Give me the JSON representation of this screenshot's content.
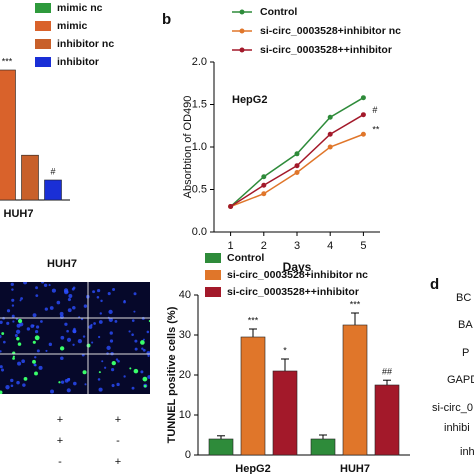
{
  "chart_data": [
    {
      "type": "bar",
      "categories": [
        "HUH7"
      ],
      "series": [
        {
          "name": "mimic nc",
          "color": "#2e9a3c",
          "values": [
            null
          ]
        },
        {
          "name": "mimic",
          "color": "#d9622b",
          "values": [
            3.25
          ],
          "labels": [
            "***"
          ]
        },
        {
          "name": "inhibitor nc",
          "color": "#c8602a",
          "values": [
            1.12
          ]
        },
        {
          "name": "inhibitor",
          "color": "#1a2fd6",
          "values": [
            0.5
          ],
          "labels": [
            "#"
          ]
        }
      ],
      "ylim": [
        0,
        4
      ]
    },
    {
      "type": "line",
      "panel_label": "b",
      "title": "HepG2",
      "x_label": "Days",
      "y_label": "Absorbtion of OD490",
      "x": [
        1,
        2,
        3,
        4,
        5
      ],
      "series": [
        {
          "name": "Control",
          "color": "#2e8b3a",
          "values": [
            0.3,
            0.65,
            0.92,
            1.35,
            1.58
          ]
        },
        {
          "name": "si-circ_0003528+inhibitor nc",
          "color": "#e0762a",
          "values": [
            0.3,
            0.45,
            0.7,
            1.0,
            1.15
          ],
          "end_label": "**"
        },
        {
          "name": "si-circ_0003528++inhibitor",
          "color": "#a3192a",
          "values": [
            0.3,
            0.55,
            0.78,
            1.15,
            1.38
          ],
          "end_label": "#"
        }
      ],
      "xlim": [
        0.5,
        5.5
      ],
      "xticks": [
        1,
        2,
        3,
        4,
        5
      ],
      "ylim": [
        0,
        2
      ],
      "yticks": [
        {
          "value": 0,
          "label": "0.0"
        },
        {
          "value": 0.5,
          "label": "0.5"
        },
        {
          "value": 1,
          "label": "1.0"
        },
        {
          "value": 1.5,
          "label": "1.5"
        },
        {
          "value": 2,
          "label": "2.0"
        }
      ]
    },
    {
      "type": "bar",
      "y_label": "TUNNEL positive cells (%)",
      "categories": [
        "HepG2",
        "HUH7"
      ],
      "series": [
        {
          "name": "Control",
          "color": "#2e8b3a",
          "values": [
            4,
            4
          ],
          "errors": [
            0.8,
            1
          ]
        },
        {
          "name": "si-circ_0003528+inhibitor nc",
          "color": "#e0762a",
          "values": [
            29.5,
            32.5
          ],
          "errors": [
            2,
            3
          ],
          "labels": [
            "***",
            "***"
          ]
        },
        {
          "name": "si-circ_0003528++inhibitor",
          "color": "#a3192a",
          "values": [
            21,
            17.5
          ],
          "errors": [
            3,
            1.2
          ],
          "labels": [
            "*",
            "##"
          ]
        }
      ],
      "ylim": [
        0,
        40
      ],
      "yticks": [
        0,
        10,
        20,
        30,
        40
      ]
    }
  ],
  "figure": {
    "image_title": "HUH7",
    "signs": [
      [
        "+",
        "+"
      ],
      [
        "+",
        "-"
      ],
      [
        "-",
        "+"
      ]
    ],
    "panel_d": {
      "label": "d",
      "rows": [
        "BC",
        "BA",
        "P",
        "GAPD",
        "si-circ_0",
        "inhibi",
        "inh"
      ]
    }
  }
}
